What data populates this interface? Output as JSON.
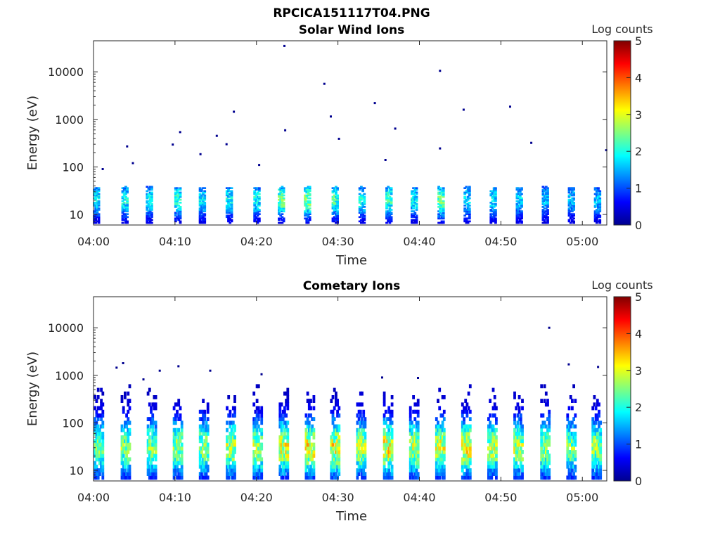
{
  "figure_title": "RPCICA151117T04.PNG",
  "colors": {
    "colormap": [
      "#00008f",
      "#0000ff",
      "#0080ff",
      "#00ffff",
      "#80ff80",
      "#ffff00",
      "#ff8000",
      "#ff0000",
      "#800000"
    ],
    "axis": "#262626"
  },
  "chart_data": [
    {
      "type": "heatmap",
      "title": "Solar Wind Ions",
      "xlabel": "Time",
      "ylabel": "Energy (eV)",
      "yscale": "log",
      "ylim": [
        6,
        45000
      ],
      "xlim": [
        "04:00",
        "05:03"
      ],
      "x_ticks": [
        "04:00",
        "04:10",
        "04:20",
        "04:30",
        "04:40",
        "04:50",
        "05:00"
      ],
      "y_ticks": [
        "10",
        "100",
        "1000",
        "10000"
      ],
      "colorbar": {
        "label": "Log counts",
        "range": [
          0,
          5
        ],
        "ticks": [
          "0",
          "1",
          "2",
          "3",
          "4",
          "5"
        ]
      },
      "bursts": [
        {
          "t": 0.3,
          "peak": 1.6
        },
        {
          "t": 3.8,
          "peak": 1.7
        },
        {
          "t": 6.8,
          "peak": 1.6
        },
        {
          "t": 10.3,
          "peak": 1.8
        },
        {
          "t": 13.3,
          "peak": 1.6
        },
        {
          "t": 16.6,
          "peak": 1.6
        },
        {
          "t": 20.0,
          "peak": 1.7
        },
        {
          "t": 23.0,
          "peak": 2.2
        },
        {
          "t": 26.2,
          "peak": 2.3
        },
        {
          "t": 29.6,
          "peak": 2.0
        },
        {
          "t": 32.9,
          "peak": 1.7
        },
        {
          "t": 36.2,
          "peak": 1.9
        },
        {
          "t": 39.3,
          "peak": 1.6
        },
        {
          "t": 42.6,
          "peak": 2.1
        },
        {
          "t": 45.8,
          "peak": 1.5
        },
        {
          "t": 49.0,
          "peak": 1.5
        },
        {
          "t": 52.2,
          "peak": 1.4
        },
        {
          "t": 55.4,
          "peak": 1.3
        },
        {
          "t": 58.6,
          "peak": 1.3
        },
        {
          "t": 61.8,
          "peak": 1.3
        }
      ],
      "outliers": [
        {
          "t": 23.3,
          "e": 35000
        },
        {
          "t": 28.2,
          "e": 5600
        },
        {
          "t": 42.4,
          "e": 10500
        },
        {
          "t": 34.4,
          "e": 2200
        },
        {
          "t": 29.0,
          "e": 1150
        },
        {
          "t": 17.1,
          "e": 1450
        },
        {
          "t": 45.3,
          "e": 1600
        },
        {
          "t": 51.0,
          "e": 1850
        },
        {
          "t": 23.4,
          "e": 590
        },
        {
          "t": 10.5,
          "e": 540
        },
        {
          "t": 36.9,
          "e": 640
        },
        {
          "t": 30.0,
          "e": 390
        },
        {
          "t": 15.0,
          "e": 450
        },
        {
          "t": 53.6,
          "e": 320
        },
        {
          "t": 4.0,
          "e": 270
        },
        {
          "t": 9.6,
          "e": 295
        },
        {
          "t": 16.2,
          "e": 300
        },
        {
          "t": 13.0,
          "e": 185
        },
        {
          "t": 42.4,
          "e": 245
        },
        {
          "t": 62.8,
          "e": 225
        },
        {
          "t": 1.0,
          "e": 90
        },
        {
          "t": 4.7,
          "e": 120
        },
        {
          "t": 20.2,
          "e": 110
        },
        {
          "t": 35.7,
          "e": 140
        }
      ]
    },
    {
      "type": "heatmap",
      "title": "Cometary Ions",
      "xlabel": "Time",
      "ylabel": "Energy (eV)",
      "yscale": "log",
      "ylim": [
        6,
        45000
      ],
      "xlim": [
        "04:00",
        "05:03"
      ],
      "x_ticks": [
        "04:00",
        "04:10",
        "04:20",
        "04:30",
        "04:40",
        "04:50",
        "05:00"
      ],
      "y_ticks": [
        "10",
        "100",
        "1000",
        "10000"
      ],
      "colorbar": {
        "label": "Log counts",
        "range": [
          0,
          5
        ],
        "ticks": [
          "0",
          "1",
          "2",
          "3",
          "4",
          "5"
        ]
      },
      "bursts": [
        {
          "t": 0.6,
          "peak": 2.2
        },
        {
          "t": 3.9,
          "peak": 2.3
        },
        {
          "t": 7.1,
          "peak": 2.3
        },
        {
          "t": 10.3,
          "peak": 2.4
        },
        {
          "t": 13.5,
          "peak": 2.4
        },
        {
          "t": 16.8,
          "peak": 2.5
        },
        {
          "t": 20.1,
          "peak": 2.5
        },
        {
          "t": 23.3,
          "peak": 2.7
        },
        {
          "t": 26.5,
          "peak": 2.9
        },
        {
          "t": 29.6,
          "peak": 2.8
        },
        {
          "t": 32.8,
          "peak": 2.5
        },
        {
          "t": 36.1,
          "peak": 2.9
        },
        {
          "t": 39.3,
          "peak": 2.6
        },
        {
          "t": 42.5,
          "peak": 2.7
        },
        {
          "t": 45.7,
          "peak": 2.8
        },
        {
          "t": 48.9,
          "peak": 2.5
        },
        {
          "t": 52.1,
          "peak": 2.5
        },
        {
          "t": 55.4,
          "peak": 2.4
        },
        {
          "t": 58.6,
          "peak": 2.3
        },
        {
          "t": 61.7,
          "peak": 2.4
        }
      ],
      "outliers": [
        {
          "t": 55.8,
          "e": 10000
        },
        {
          "t": 3.5,
          "e": 1800
        },
        {
          "t": 2.7,
          "e": 1450
        },
        {
          "t": 10.3,
          "e": 1550
        },
        {
          "t": 8.0,
          "e": 1250
        },
        {
          "t": 14.2,
          "e": 1250
        },
        {
          "t": 20.5,
          "e": 1050
        },
        {
          "t": 58.2,
          "e": 1700
        },
        {
          "t": 61.8,
          "e": 1500
        },
        {
          "t": 35.3,
          "e": 900
        },
        {
          "t": 39.7,
          "e": 880
        },
        {
          "t": 6.0,
          "e": 820
        }
      ]
    }
  ]
}
